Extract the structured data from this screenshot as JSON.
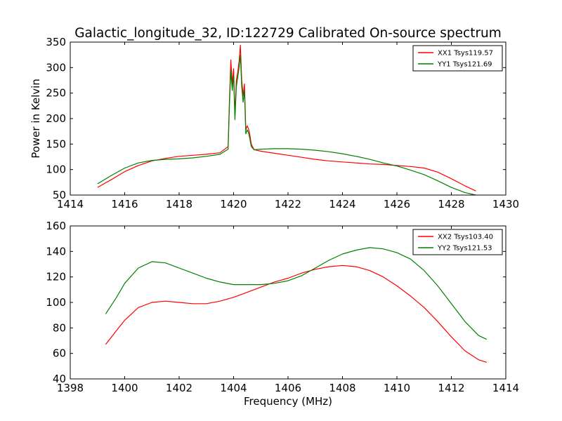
{
  "figure": {
    "title": "Galactic_longitude_32, ID:122729 Calibrated On-source spectrum"
  },
  "chart_data": [
    {
      "type": "line",
      "ylabel": "Power in Kelvin",
      "xlabel": "",
      "xlim": [
        1414,
        1430
      ],
      "ylim": [
        50,
        350
      ],
      "xticks": [
        1414,
        1416,
        1418,
        1420,
        1422,
        1424,
        1426,
        1428,
        1430
      ],
      "yticks": [
        50,
        100,
        150,
        200,
        250,
        300,
        350
      ],
      "legend_position": "top-right",
      "series": [
        {
          "name": "XX1 Tsys119.57",
          "color": "#ff0000",
          "x": [
            1415.0,
            1415.5,
            1416.0,
            1416.5,
            1417.0,
            1417.5,
            1418.0,
            1418.5,
            1419.0,
            1419.5,
            1419.8,
            1419.85,
            1419.9,
            1419.95,
            1420.0,
            1420.05,
            1420.1,
            1420.15,
            1420.2,
            1420.25,
            1420.3,
            1420.35,
            1420.4,
            1420.45,
            1420.5,
            1420.55,
            1420.6,
            1420.65,
            1420.75,
            1421.0,
            1421.5,
            1422.0,
            1422.5,
            1423.0,
            1423.5,
            1424.0,
            1424.5,
            1425.0,
            1425.5,
            1426.0,
            1426.5,
            1427.0,
            1427.5,
            1428.0,
            1428.5,
            1428.9
          ],
          "y": [
            65,
            80,
            96,
            108,
            117,
            122,
            126,
            128,
            130,
            133,
            145,
            240,
            315,
            268,
            298,
            208,
            275,
            290,
            312,
            344,
            275,
            245,
            268,
            178,
            186,
            180,
            168,
            150,
            139,
            136,
            132,
            128,
            124,
            120,
            117,
            115,
            113,
            111,
            110,
            108,
            106,
            103,
            95,
            82,
            68,
            58
          ]
        },
        {
          "name": "YY1 Tsys121.69",
          "color": "#008000",
          "x": [
            1415.0,
            1415.5,
            1416.0,
            1416.5,
            1417.0,
            1417.5,
            1418.0,
            1418.5,
            1419.0,
            1419.5,
            1419.8,
            1419.85,
            1419.9,
            1419.95,
            1420.0,
            1420.05,
            1420.1,
            1420.15,
            1420.2,
            1420.25,
            1420.3,
            1420.35,
            1420.4,
            1420.45,
            1420.5,
            1420.55,
            1420.6,
            1420.65,
            1420.75,
            1421.0,
            1421.5,
            1422.0,
            1422.5,
            1423.0,
            1423.5,
            1424.0,
            1424.5,
            1425.0,
            1425.5,
            1426.0,
            1426.5,
            1427.0,
            1427.5,
            1428.0,
            1428.5,
            1428.9
          ],
          "y": [
            72,
            88,
            103,
            113,
            118,
            120,
            121,
            123,
            126,
            130,
            140,
            230,
            295,
            255,
            285,
            198,
            262,
            280,
            300,
            325,
            262,
            232,
            255,
            170,
            178,
            172,
            160,
            145,
            139,
            140,
            141,
            141,
            140,
            138,
            135,
            131,
            126,
            120,
            113,
            107,
            99,
            90,
            78,
            65,
            55,
            50
          ]
        }
      ]
    },
    {
      "type": "line",
      "xlabel": "Frequency (MHz)",
      "ylabel": "",
      "xlim": [
        1398,
        1414
      ],
      "ylim": [
        40,
        160
      ],
      "xticks": [
        1398,
        1400,
        1402,
        1404,
        1406,
        1408,
        1410,
        1412,
        1414
      ],
      "yticks": [
        40,
        60,
        80,
        100,
        120,
        140,
        160
      ],
      "legend_position": "top-right",
      "series": [
        {
          "name": "XX2 Tsys103.40",
          "color": "#ff0000",
          "x": [
            1399.3,
            1399.7,
            1400.0,
            1400.5,
            1401.0,
            1401.5,
            1402.0,
            1402.5,
            1403.0,
            1403.5,
            1404.0,
            1404.5,
            1405.0,
            1405.5,
            1406.0,
            1406.5,
            1407.0,
            1407.5,
            1408.0,
            1408.5,
            1409.0,
            1409.5,
            1410.0,
            1410.5,
            1411.0,
            1411.5,
            1412.0,
            1412.5,
            1413.0,
            1413.3
          ],
          "y": [
            67,
            78,
            86,
            96,
            100,
            101,
            100,
            99,
            99,
            101,
            104,
            108,
            112,
            116,
            119,
            123,
            126,
            128,
            129,
            128,
            125,
            120,
            113,
            105,
            96,
            85,
            73,
            62,
            55,
            53
          ]
        },
        {
          "name": "YY2 Tsys121.53",
          "color": "#008000",
          "x": [
            1399.3,
            1399.7,
            1400.0,
            1400.5,
            1401.0,
            1401.5,
            1402.0,
            1402.5,
            1403.0,
            1403.5,
            1404.0,
            1404.5,
            1405.0,
            1405.5,
            1406.0,
            1406.5,
            1407.0,
            1407.5,
            1408.0,
            1408.5,
            1409.0,
            1409.5,
            1410.0,
            1410.5,
            1411.0,
            1411.5,
            1412.0,
            1412.5,
            1413.0,
            1413.3
          ],
          "y": [
            91,
            104,
            115,
            127,
            132,
            131,
            127,
            123,
            119,
            116,
            114,
            114,
            114,
            115,
            117,
            121,
            127,
            133,
            138,
            141,
            143,
            142,
            139,
            134,
            125,
            113,
            99,
            85,
            74,
            71
          ]
        }
      ]
    }
  ]
}
